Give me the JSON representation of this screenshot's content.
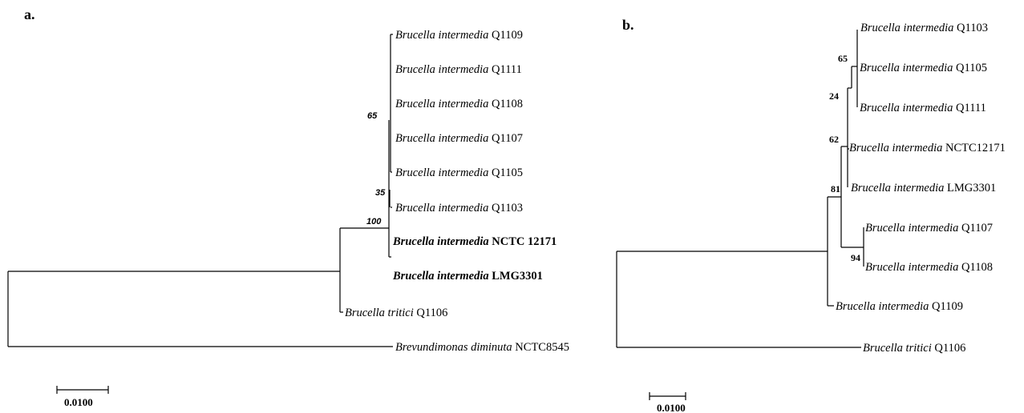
{
  "panel_a": {
    "label": "a.",
    "taxa": [
      {
        "genus_species": "Brucella intermedia",
        "strain": "Q1109",
        "bold": false
      },
      {
        "genus_species": "Brucella intermedia",
        "strain": "Q1111",
        "bold": false
      },
      {
        "genus_species": "Brucella intermedia",
        "strain": "Q1108",
        "bold": false
      },
      {
        "genus_species": "Brucella intermedia",
        "strain": "Q1107",
        "bold": false
      },
      {
        "genus_species": "Brucella intermedia",
        "strain": "Q1105",
        "bold": false
      },
      {
        "genus_species": "Brucella intermedia",
        "strain": "Q1103",
        "bold": false
      },
      {
        "genus_species": "Brucella intermedia",
        "strain": "NCTC 12171",
        "bold": true
      },
      {
        "genus_species": "Brucella intermedia",
        "strain": "LMG3301",
        "bold": true
      },
      {
        "genus_species": "Brucella tritici",
        "strain": "Q1106",
        "bold": false
      },
      {
        "genus_species": "Brevundimonas diminuta",
        "strain": "NCTC8545",
        "bold": false
      }
    ],
    "bootstrap": [
      "65",
      "35",
      "100"
    ],
    "scale": "0.0100"
  },
  "panel_b": {
    "label": "b.",
    "taxa": [
      {
        "genus_species": "Brucella intermedia",
        "strain": "Q1103"
      },
      {
        "genus_species": "Brucella intermedia",
        "strain": "Q1105"
      },
      {
        "genus_species": "Brucella intermedia",
        "strain": "Q1111"
      },
      {
        "genus_species": "Brucella intermedia",
        "strain": "NCTC12171"
      },
      {
        "genus_species": "Brucella intermedia",
        "strain": "LMG3301"
      },
      {
        "genus_species": "Brucella intermedia",
        "strain": "Q1107"
      },
      {
        "genus_species": "Brucella intermedia",
        "strain": "Q1108"
      },
      {
        "genus_species": "Brucella intermedia",
        "strain": "Q1109"
      },
      {
        "genus_species": "Brucella tritici",
        "strain": "Q1106"
      }
    ],
    "bootstrap": [
      "65",
      "24",
      "62",
      "81",
      "94"
    ],
    "scale": "0.0100"
  }
}
